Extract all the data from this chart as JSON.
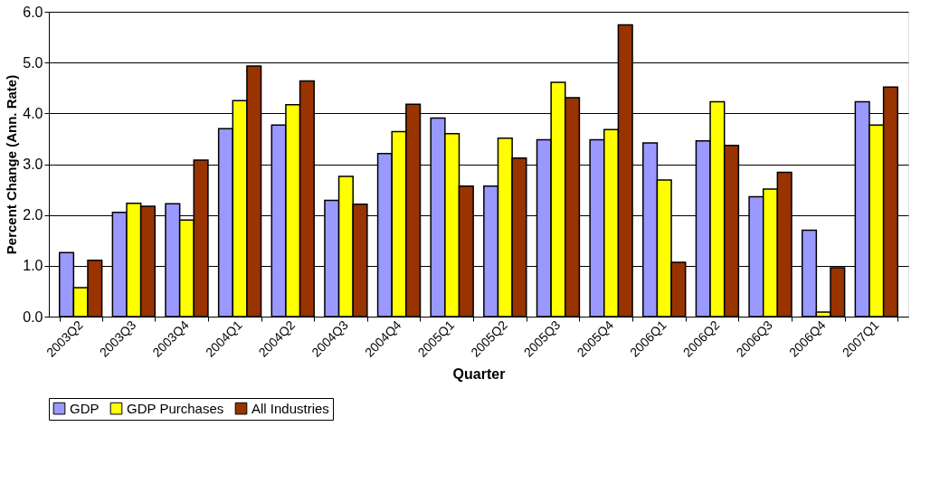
{
  "chart_data": {
    "type": "bar",
    "xlabel": "Quarter",
    "ylabel": "Percent Change (Ann. Rate)",
    "categories": [
      "2003Q2",
      "2003Q3",
      "2003Q4",
      "2004Q1",
      "2004Q2",
      "2004Q3",
      "2004Q4",
      "2005Q1",
      "2005Q2",
      "2005Q3",
      "2005Q4",
      "2006Q1",
      "2006Q2",
      "2006Q3",
      "2006Q4",
      "2007Q1"
    ],
    "series": [
      {
        "name": "GDP",
        "color": "#9999ff",
        "values": [
          1.26,
          2.05,
          2.22,
          3.7,
          3.77,
          2.29,
          3.21,
          3.91,
          2.57,
          3.48,
          3.48,
          3.42,
          3.46,
          2.36,
          1.7,
          4.23
        ]
      },
      {
        "name": "GDP Purchases",
        "color": "#ffff00",
        "values": [
          0.57,
          2.23,
          1.9,
          4.25,
          4.17,
          2.76,
          3.64,
          3.6,
          3.51,
          4.61,
          3.68,
          2.69,
          4.23,
          2.51,
          0.09,
          3.77
        ]
      },
      {
        "name": "All Industries",
        "color": "#993300",
        "values": [
          1.11,
          2.17,
          3.08,
          4.93,
          4.64,
          2.21,
          4.18,
          2.57,
          3.12,
          4.31,
          5.74,
          1.07,
          3.37,
          2.84,
          0.96,
          4.52
        ]
      }
    ],
    "ylim": [
      0,
      6
    ],
    "yticks": [
      {
        "value": 0,
        "label": "0.0"
      },
      {
        "value": 1,
        "label": "1.0"
      },
      {
        "value": 2,
        "label": "2.0"
      },
      {
        "value": 3,
        "label": "3.0"
      },
      {
        "value": 4,
        "label": "4.0"
      },
      {
        "value": 5,
        "label": "5.0"
      },
      {
        "value": 6,
        "label": "6.0"
      }
    ],
    "grid": "y",
    "legend": "bottom"
  }
}
